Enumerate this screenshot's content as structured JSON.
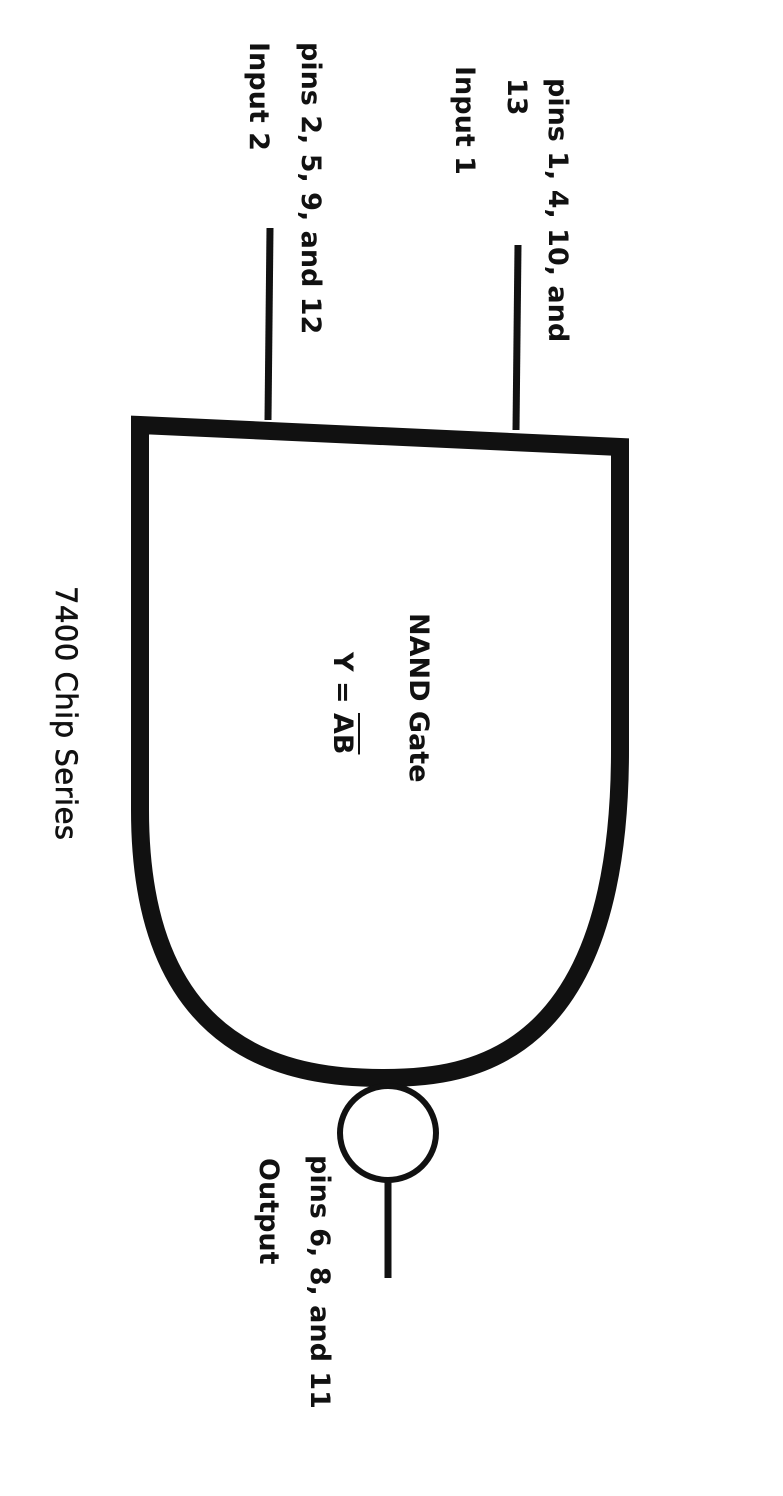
{
  "diagram": {
    "input1": {
      "pins_line1": "pins 1, 4, 10, and",
      "pins_line2": "13",
      "label": "Input 1"
    },
    "input2": {
      "pins": "pins 2, 5, 9, and 12",
      "label": "Input 2"
    },
    "gate": {
      "name": "NAND Gate",
      "equation_prefix": "Y = ",
      "equation_overbar": "AB"
    },
    "output": {
      "pins": "pins 6, 8, and 11",
      "label": "Output"
    },
    "caption": "7400 Chip Series",
    "colors": {
      "ink": "#111111",
      "background": "#ffffff"
    }
  }
}
